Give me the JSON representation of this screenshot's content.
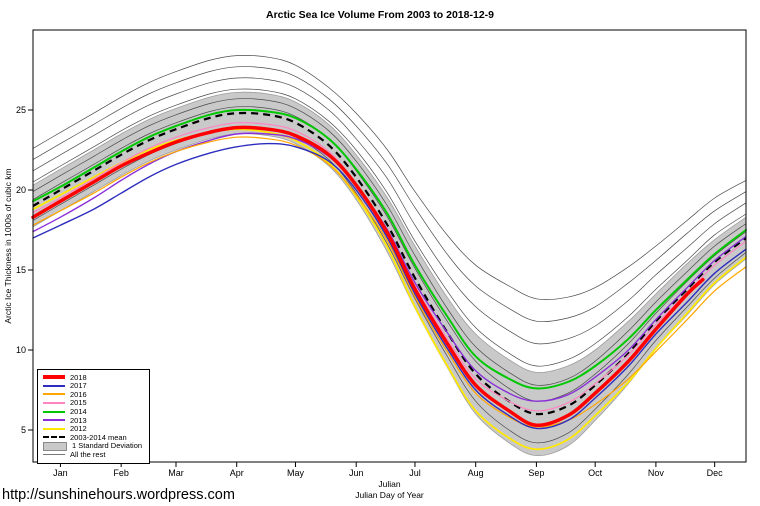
{
  "footer": {
    "url": "http://sunshinehours.wordpress.com"
  },
  "chart_data": {
    "type": "line",
    "title": "Arctic Sea Ice Volume From 2003 to 2018-12-9",
    "ylabel": "Arctic Ice Thickness in 1000s of cubic km",
    "xlabel_line1": "Julian",
    "xlabel_line2": "Julian Day of Year",
    "xlim": [
      1,
      365
    ],
    "ylim": [
      3,
      30
    ],
    "y_ticks": [
      5,
      10,
      15,
      20,
      25
    ],
    "month_ticks": {
      "labels": [
        "Jan",
        "Feb",
        "Mar",
        "Apr",
        "May",
        "Jun",
        "Jul",
        "Aug",
        "Sep",
        "Oct",
        "Nov",
        "Dec"
      ],
      "days": [
        15,
        46,
        74,
        105,
        135,
        166,
        196,
        227,
        258,
        288,
        319,
        349
      ]
    },
    "x": [
      1,
      15,
      32,
      46,
      60,
      74,
      91,
      105,
      121,
      135,
      152,
      166,
      182,
      196,
      213,
      227,
      244,
      258,
      274,
      288,
      305,
      319,
      335,
      349,
      365
    ],
    "band": {
      "name": "1 Standard Deviation",
      "color": "#c9c9c9",
      "upper": [
        20.3,
        21.3,
        22.5,
        23.5,
        24.4,
        25.1,
        25.8,
        26.1,
        26.0,
        25.5,
        24.1,
        22.2,
        19.5,
        16.5,
        13.2,
        11.0,
        9.4,
        8.6,
        9.0,
        10.0,
        11.8,
        13.5,
        15.4,
        16.9,
        18.3
      ],
      "lower": [
        17.7,
        18.7,
        19.9,
        20.9,
        21.8,
        22.5,
        23.2,
        23.5,
        23.4,
        22.9,
        21.5,
        19.4,
        16.1,
        12.6,
        8.8,
        6.0,
        4.2,
        3.4,
        4.0,
        5.6,
        7.9,
        10.1,
        12.2,
        14.1,
        15.7
      ]
    },
    "mean": {
      "name": "2003-2014 mean",
      "color": "#000000",
      "width": 2.2,
      "values": [
        19.0,
        20.0,
        21.2,
        22.2,
        23.1,
        23.8,
        24.5,
        24.8,
        24.7,
        24.2,
        22.8,
        20.8,
        17.8,
        14.5,
        11.0,
        8.5,
        6.8,
        6.0,
        6.5,
        7.8,
        9.8,
        11.8,
        13.8,
        15.5,
        17.0
      ]
    },
    "rest": {
      "name": "All the rest",
      "color": "#4a4a4a",
      "width": 0.7,
      "lines": [
        [
          22.6,
          23.6,
          24.8,
          25.8,
          26.7,
          27.4,
          28.1,
          28.4,
          28.3,
          27.8,
          26.4,
          24.8,
          22.5,
          19.9,
          17.1,
          15.3,
          14.0,
          13.2,
          13.3,
          13.9,
          15.2,
          16.5,
          18.1,
          19.5,
          20.6
        ],
        [
          21.9,
          22.9,
          24.1,
          25.1,
          26.0,
          26.7,
          27.4,
          27.7,
          27.6,
          27.1,
          25.7,
          24.0,
          21.6,
          18.9,
          15.9,
          14.0,
          12.6,
          11.8,
          12.0,
          12.7,
          14.2,
          15.6,
          17.3,
          18.7,
          19.9
        ],
        [
          21.2,
          22.2,
          23.4,
          24.4,
          25.3,
          26.0,
          26.7,
          27.0,
          26.9,
          26.4,
          25.0,
          23.2,
          20.7,
          17.8,
          14.7,
          12.7,
          11.2,
          10.4,
          10.7,
          11.5,
          13.1,
          14.7,
          16.4,
          17.9,
          19.2
        ],
        [
          20.5,
          21.5,
          22.7,
          23.7,
          24.6,
          25.3,
          26.0,
          26.3,
          26.2,
          25.7,
          24.3,
          22.5,
          19.8,
          16.8,
          13.6,
          11.4,
          9.8,
          9.0,
          9.4,
          10.4,
          12.1,
          13.8,
          15.6,
          17.2,
          18.5
        ],
        [
          19.9,
          20.9,
          22.1,
          23.1,
          24.0,
          24.7,
          25.4,
          25.7,
          25.6,
          25.1,
          23.7,
          21.8,
          19.0,
          15.9,
          12.5,
          10.2,
          8.6,
          7.8,
          8.2,
          9.3,
          11.2,
          13.0,
          14.9,
          16.5,
          17.9
        ],
        [
          19.4,
          20.4,
          21.6,
          22.6,
          23.5,
          24.2,
          24.9,
          25.2,
          25.1,
          24.6,
          23.2,
          21.2,
          18.3,
          15.1,
          11.7,
          9.3,
          7.6,
          6.8,
          7.3,
          8.5,
          10.4,
          12.3,
          14.3,
          15.9,
          17.4
        ],
        [
          18.1,
          19.1,
          20.3,
          21.3,
          22.2,
          22.9,
          23.6,
          23.9,
          23.8,
          23.3,
          21.9,
          19.8,
          16.6,
          13.2,
          9.5,
          6.8,
          5.0,
          4.2,
          4.8,
          6.3,
          8.5,
          10.6,
          12.7,
          14.5,
          16.1
        ]
      ]
    },
    "series": [
      {
        "name": "2018",
        "color": "#ff0000",
        "width": 3.5,
        "x": [
          1,
          15,
          32,
          46,
          60,
          74,
          91,
          105,
          121,
          135,
          152,
          166,
          182,
          196,
          213,
          227,
          244,
          258,
          274,
          288,
          305,
          319,
          335,
          343
        ],
        "values": [
          18.3,
          19.3,
          20.5,
          21.5,
          22.3,
          23.0,
          23.6,
          23.9,
          23.8,
          23.4,
          22.2,
          20.3,
          17.3,
          13.8,
          10.3,
          7.8,
          6.2,
          5.3,
          5.9,
          7.3,
          9.3,
          11.3,
          13.5,
          14.4
        ]
      },
      {
        "name": "2017",
        "color": "#2e2ebe",
        "width": 1.4,
        "values": [
          17.0,
          17.8,
          18.8,
          19.8,
          20.8,
          21.6,
          22.3,
          22.7,
          22.9,
          22.7,
          21.8,
          20.0,
          17.0,
          13.5,
          10.0,
          7.5,
          5.9,
          5.1,
          5.6,
          7.0,
          9.0,
          11.0,
          13.0,
          14.8,
          16.3
        ]
      },
      {
        "name": "2016",
        "color": "#ffa500",
        "width": 1.2,
        "values": [
          17.8,
          18.7,
          19.8,
          20.8,
          21.7,
          22.4,
          23.0,
          23.3,
          23.2,
          22.8,
          21.6,
          19.7,
          16.8,
          13.3,
          9.8,
          7.3,
          5.8,
          5.2,
          5.6,
          6.6,
          8.2,
          9.9,
          11.9,
          13.7,
          15.2
        ]
      },
      {
        "name": "2015",
        "color": "#ff85c2",
        "width": 1.2,
        "values": [
          18.6,
          19.5,
          20.7,
          21.7,
          22.6,
          23.3,
          23.9,
          24.2,
          24.1,
          23.7,
          22.4,
          20.4,
          17.4,
          14.0,
          10.6,
          8.2,
          6.8,
          6.2,
          6.7,
          7.9,
          9.7,
          11.6,
          13.6,
          15.3,
          16.8
        ]
      },
      {
        "name": "2014",
        "color": "#00c800",
        "width": 2,
        "values": [
          19.3,
          20.2,
          21.4,
          22.4,
          23.3,
          24.0,
          24.7,
          25.0,
          24.9,
          24.5,
          23.2,
          21.3,
          18.5,
          15.3,
          12.0,
          9.6,
          8.2,
          7.6,
          8.0,
          9.0,
          10.7,
          12.5,
          14.4,
          16.0,
          17.5
        ]
      },
      {
        "name": "2013",
        "color": "#8b30d9",
        "width": 1.4,
        "values": [
          17.4,
          18.3,
          19.5,
          20.6,
          21.6,
          22.4,
          23.1,
          23.5,
          23.5,
          23.2,
          22.1,
          20.3,
          17.5,
          14.2,
          11.0,
          8.7,
          7.3,
          6.8,
          7.2,
          8.3,
          10.0,
          11.9,
          13.9,
          15.6,
          17.1
        ]
      },
      {
        "name": "2012",
        "color": "#ffe800",
        "width": 1.8,
        "values": [
          18.8,
          19.7,
          20.8,
          21.7,
          22.5,
          23.1,
          23.6,
          23.8,
          23.6,
          23.1,
          21.7,
          19.6,
          16.4,
          12.7,
          8.9,
          6.2,
          4.5,
          3.8,
          4.4,
          5.9,
          8.0,
          10.1,
          12.3,
          14.2,
          15.8
        ]
      }
    ],
    "legend": [
      {
        "label": "2018",
        "kind": "line",
        "color": "#ff0000",
        "weight": 4
      },
      {
        "label": "2017",
        "kind": "line",
        "color": "#2e2ebe",
        "weight": 2
      },
      {
        "label": "2016",
        "kind": "line",
        "color": "#ffa500",
        "weight": 2
      },
      {
        "label": "2015",
        "kind": "line",
        "color": "#ff85c2",
        "weight": 2
      },
      {
        "label": "2014",
        "kind": "line",
        "color": "#00c800",
        "weight": 2
      },
      {
        "label": "2013",
        "kind": "line",
        "color": "#8b30d9",
        "weight": 2
      },
      {
        "label": "2012",
        "kind": "line",
        "color": "#ffe800",
        "weight": 2
      },
      {
        "label": "2003-2014 mean",
        "kind": "dashed",
        "color": "#000000",
        "weight": 2
      },
      {
        "label": "1 Standard Deviation",
        "kind": "box",
        "color": "#c9c9c9"
      },
      {
        "label": "All the rest",
        "kind": "line",
        "color": "#787878",
        "weight": 1
      }
    ]
  }
}
